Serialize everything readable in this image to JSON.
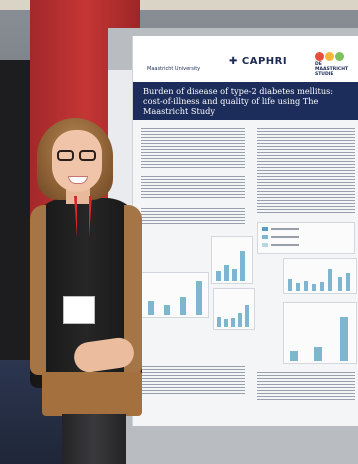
{
  "poster": {
    "university_logo": "Maastricht University",
    "institute_logo": "CAPHRI",
    "study_logo": "DE MAASTRICHT STUDIE",
    "title_line1": "Burden of disease of type-2 diabetes mellitus:",
    "title_line2": "cost-of-illness and quality of life using The Maastricht Study"
  },
  "badge": {
    "name": ""
  },
  "colors": {
    "title_band": "#1c2d5c",
    "chart_bars": "#7fb6cf",
    "door_red": "#c43634",
    "lanyard": "#d8262e"
  }
}
